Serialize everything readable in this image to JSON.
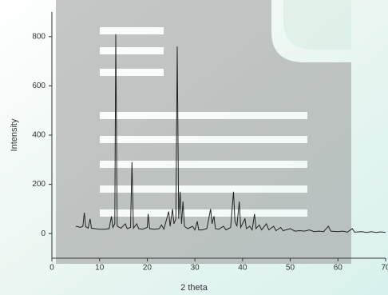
{
  "chart_data": {
    "type": "line",
    "xlabel": "2 theta",
    "ylabel": "Intensity",
    "xlim": [
      0,
      70
    ],
    "xticks": [
      0,
      10,
      20,
      30,
      40,
      50,
      60,
      70
    ],
    "ylim": [
      -100,
      900
    ],
    "yticks": [
      0,
      200,
      400,
      600,
      800
    ],
    "series": [
      {
        "color": "#222222",
        "x": [
          5,
          5.5,
          6,
          6.5,
          6.8,
          7.1,
          7.6,
          8.0,
          8.3,
          9,
          10,
          11,
          12,
          12.5,
          12.8,
          13.2,
          13.4,
          13.7,
          14.5,
          15.4,
          15.8,
          16.5,
          16.8,
          17.1,
          17.8,
          18.2,
          19,
          20,
          20.2,
          20.5,
          21.5,
          22.5,
          23,
          23.5,
          24.5,
          24.8,
          25.3,
          25.6,
          26.0,
          26.3,
          26.6,
          26.9,
          27.2,
          27.5,
          27.8,
          28.5,
          29.5,
          30,
          30.5,
          30.8,
          31.5,
          32.5,
          33.3,
          33.6,
          34,
          34.3,
          35,
          36,
          36.5,
          37.5,
          38.1,
          38.4,
          38.8,
          39.3,
          39.6,
          40.5,
          40.8,
          41.5,
          42,
          42.5,
          42.8,
          43.5,
          44,
          45,
          45.5,
          46.5,
          47,
          48,
          48.5,
          50,
          51,
          52,
          53,
          54,
          55,
          56,
          57,
          58,
          58.5,
          60,
          61,
          62,
          63,
          63.5,
          65,
          66,
          67,
          68,
          69,
          70
        ],
        "values": [
          30,
          28,
          25,
          30,
          85,
          28,
          22,
          60,
          22,
          20,
          18,
          18,
          20,
          70,
          25,
          40,
          810,
          30,
          22,
          40,
          20,
          25,
          290,
          22,
          40,
          20,
          18,
          25,
          80,
          20,
          18,
          20,
          35,
          18,
          90,
          30,
          100,
          40,
          60,
          760,
          60,
          170,
          40,
          130,
          30,
          20,
          30,
          15,
          50,
          15,
          15,
          20,
          100,
          40,
          70,
          20,
          18,
          30,
          15,
          25,
          170,
          50,
          30,
          130,
          25,
          60,
          20,
          30,
          15,
          80,
          20,
          35,
          15,
          40,
          15,
          30,
          12,
          25,
          12,
          20,
          10,
          12,
          10,
          15,
          8,
          10,
          8,
          30,
          10,
          8,
          10,
          6,
          20,
          6,
          8,
          5,
          8,
          5,
          7,
          5
        ]
      }
    ]
  }
}
